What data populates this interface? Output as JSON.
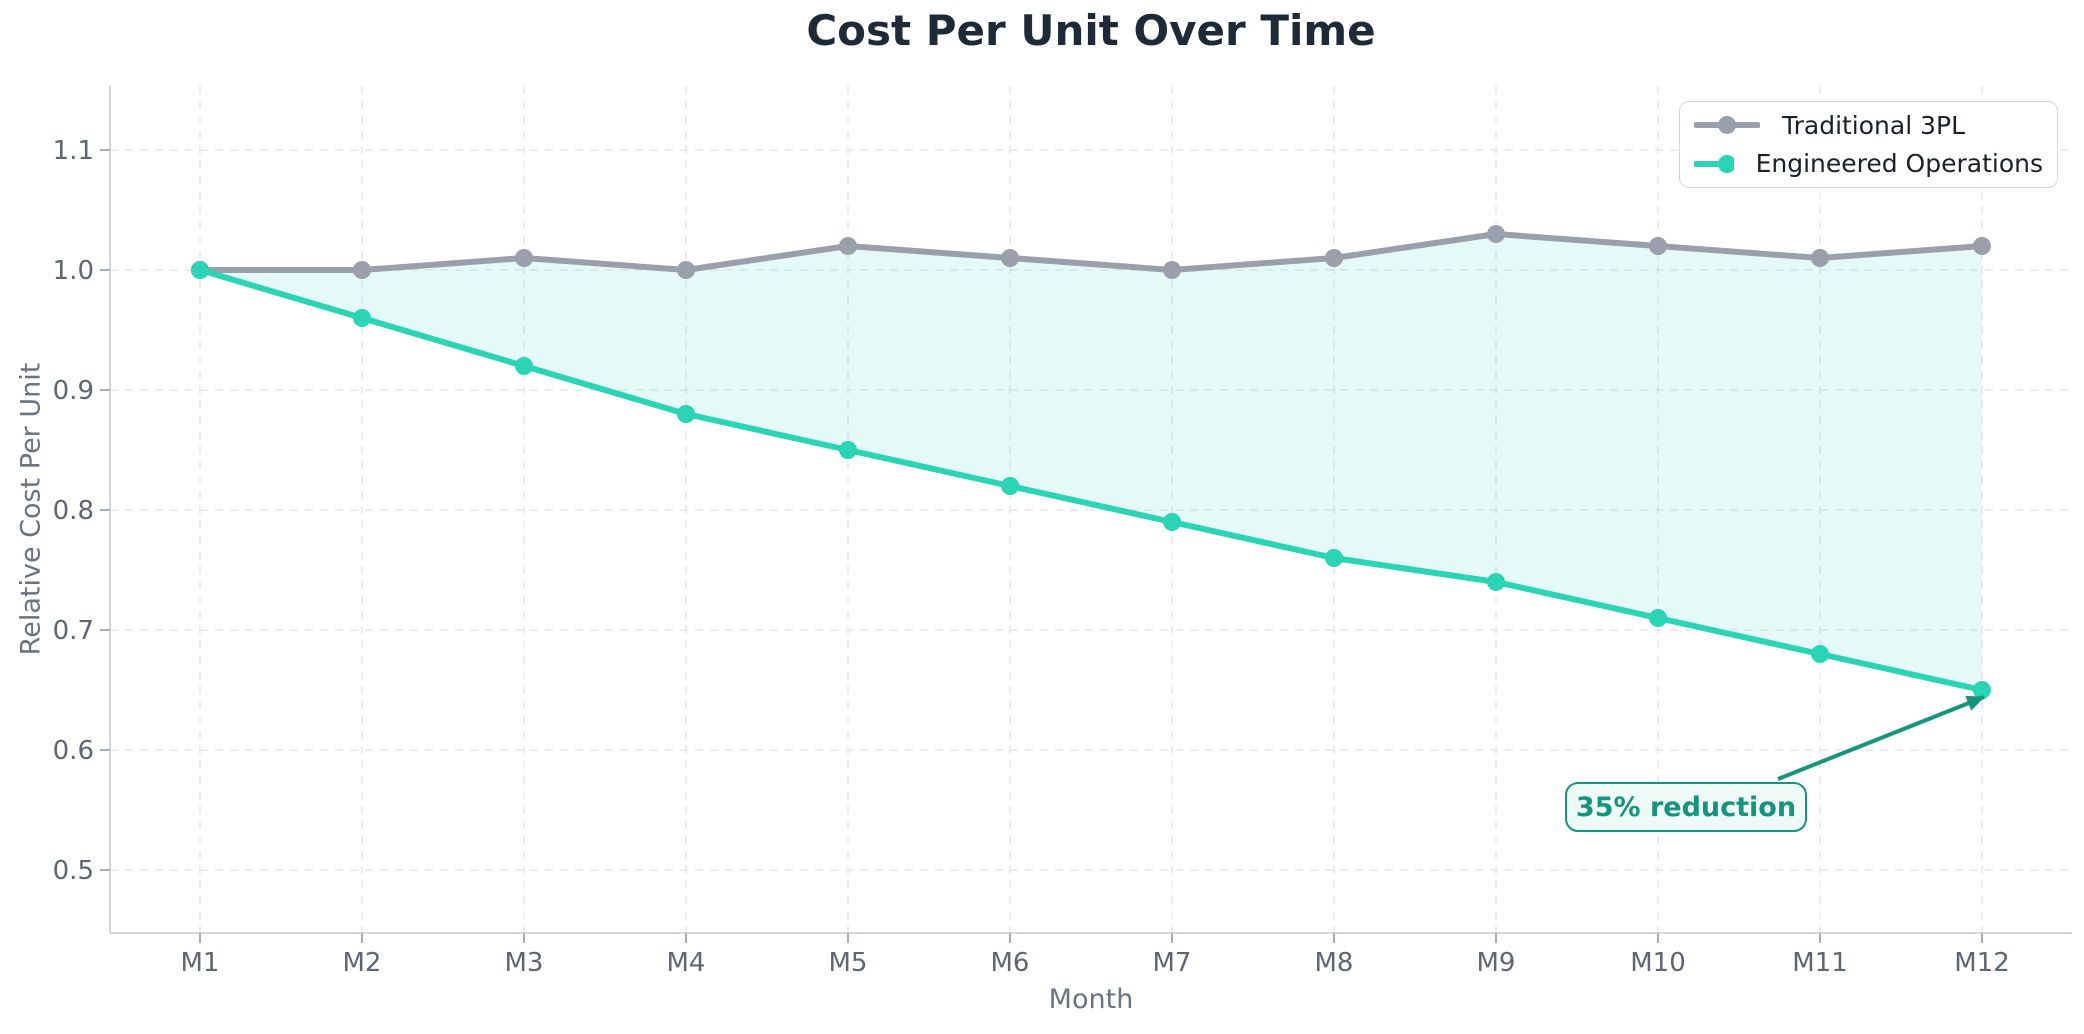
{
  "chart_data": {
    "type": "line",
    "title": "Cost Per Unit Over Time",
    "xlabel": "Month",
    "ylabel": "Relative Cost Per Unit",
    "categories": [
      "M1",
      "M2",
      "M3",
      "M4",
      "M5",
      "M6",
      "M7",
      "M8",
      "M9",
      "M10",
      "M11",
      "M12"
    ],
    "series": [
      {
        "name": "Traditional 3PL",
        "color": "#9aa0ab",
        "values": [
          1.0,
          1.0,
          1.01,
          1.0,
          1.02,
          1.01,
          1.0,
          1.01,
          1.03,
          1.02,
          1.01,
          1.02
        ]
      },
      {
        "name": "Engineered Operations",
        "color": "#2cd4b6",
        "values": [
          1.0,
          0.96,
          0.92,
          0.88,
          0.85,
          0.82,
          0.79,
          0.76,
          0.74,
          0.71,
          0.68,
          0.65
        ]
      }
    ],
    "fill_between": {
      "between": [
        "Traditional 3PL",
        "Engineered Operations"
      ],
      "color": "#2cd4b6",
      "opacity": 0.12
    },
    "ytick_labels": [
      "1.1",
      "1.0",
      "0.9",
      "0.8",
      "0.7",
      "0.6",
      "0.5"
    ],
    "ytick_values": [
      1.1,
      1.0,
      0.9,
      0.8,
      0.7,
      0.6,
      0.5
    ],
    "ylim": [
      0.449,
      1.154
    ],
    "grid": "dashed",
    "legend": {
      "position": "upper right"
    },
    "annotation": {
      "text": "35% reduction",
      "color": "#17947e",
      "bg": "#eefaf6",
      "target_category": "M12",
      "target_value": 0.65
    }
  },
  "palette": {
    "title_text": "#1f2a39",
    "tick_text": "#5d6672",
    "axis_label_text": "#6a7380",
    "legend_text": "#1a202a",
    "gridline": "#e9eaec",
    "spine": "#d3d6da",
    "tick_mark": "#a9adb5",
    "background": "#ffffff"
  }
}
